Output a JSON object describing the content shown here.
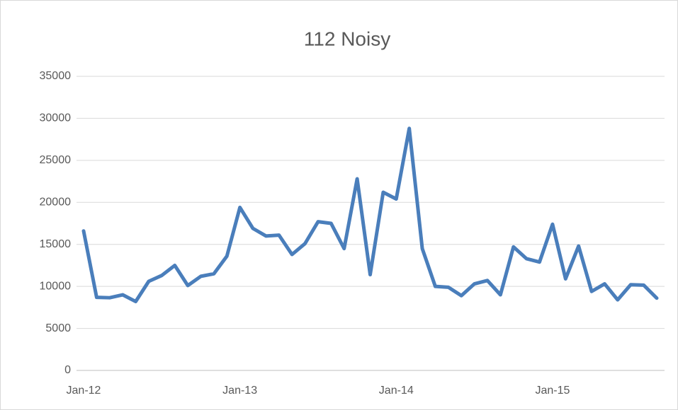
{
  "chart_data": {
    "type": "line",
    "title": "112 Noisy",
    "categories": [
      "Jan-12",
      null,
      null,
      null,
      null,
      null,
      null,
      null,
      null,
      null,
      null,
      null,
      "Jan-13",
      null,
      null,
      null,
      null,
      null,
      null,
      null,
      null,
      null,
      null,
      null,
      "Jan-14",
      null,
      null,
      null,
      null,
      null,
      null,
      null,
      null,
      null,
      null,
      null,
      "Jan-15",
      null,
      null,
      null,
      null,
      null,
      null,
      null,
      null
    ],
    "series": [
      {
        "name": "112 Noisy",
        "color": "#4a7ebb",
        "values": [
          16600,
          8700,
          8650,
          9000,
          8200,
          10600,
          11300,
          12500,
          10100,
          11200,
          11500,
          13600,
          19400,
          16900,
          16000,
          16100,
          13800,
          15100,
          17700,
          17500,
          14500,
          22800,
          11400,
          21200,
          20400,
          28800,
          14500,
          10000,
          9900,
          8900,
          10300,
          10700,
          9000,
          14700,
          13300,
          12900,
          17400,
          10900,
          14800,
          9400,
          10300,
          8400,
          10200,
          10150,
          8600
        ]
      }
    ],
    "ylim": [
      0,
      35000
    ],
    "yticks": [
      0,
      5000,
      10000,
      15000,
      20000,
      25000,
      30000,
      35000
    ],
    "grid": true
  }
}
